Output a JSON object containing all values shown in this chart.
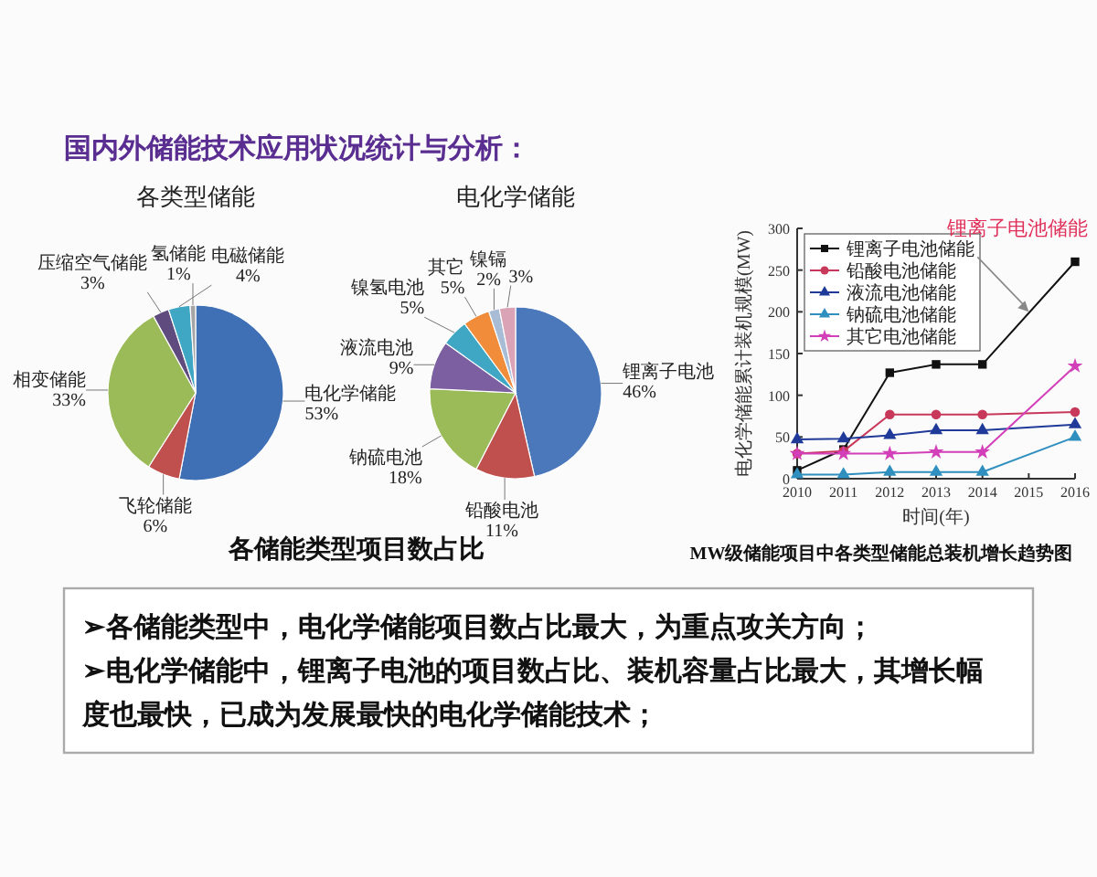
{
  "chart_data": [
    {
      "type": "other",
      "title": "国内外储能技术应用状况统计与分析："
    },
    {
      "type": "pie",
      "title": "各类型储能",
      "categories": [
        "电化学储能",
        "飞轮储能",
        "相变储能",
        "压缩空气储能",
        "电磁储能",
        "氢储能"
      ],
      "values": [
        53,
        6,
        33,
        3,
        4,
        1
      ],
      "value_labels": [
        "53%",
        "6%",
        "33%",
        "3%",
        "4%",
        "1%"
      ],
      "colors": [
        "#3f6fb5",
        "#c0504d",
        "#9bbb59",
        "#5f4b7e",
        "#3fa6c4",
        "#a5a5a5"
      ],
      "annotations": [
        "各储能类型项目数占比"
      ]
    },
    {
      "type": "pie",
      "title": "电化学储能",
      "categories": [
        "锂离子电池",
        "铅酸电池",
        "钠硫电池",
        "液流电池",
        "镍氢电池",
        "其它",
        "镍镉",
        null
      ],
      "values": [
        46,
        11,
        18,
        9,
        5,
        5,
        2,
        3
      ],
      "value_labels": [
        "46%",
        "11%",
        "18%",
        "9%",
        "5%",
        "5%",
        "2%",
        "3%"
      ],
      "colors": [
        "#4a78bb",
        "#c0504d",
        "#9bbb59",
        "#7b5fa0",
        "#3fa6c4",
        "#f08c3a",
        "#a9bcd6",
        "#dba3b6"
      ]
    },
    {
      "type": "line",
      "xlabel": "时间(年)",
      "ylabel": "电化学储能累计装机规模(MW)",
      "x": [
        2010,
        2011,
        2012,
        2013,
        2014,
        2016
      ],
      "xlim": [
        2010,
        2016
      ],
      "xticks": [
        2010,
        2011,
        2012,
        2013,
        2014,
        2015,
        2016
      ],
      "ylim": [
        0,
        300
      ],
      "yticks": [
        0,
        50,
        100,
        150,
        200,
        250,
        300
      ],
      "legend": "top left",
      "line_style": "solid",
      "annotations": [
        {
          "text": "锂离子电池储能",
          "x": 2015,
          "y": 200
        },
        "MW级储能项目中各类型储能总装机增长趋势图"
      ],
      "series": [
        {
          "name": "锂离子电池储能",
          "color": "#111111",
          "marker": "square",
          "values": [
            10,
            35,
            127,
            137,
            137,
            260
          ]
        },
        {
          "name": "铅酸电池储能",
          "color": "#c8385a",
          "marker": "circle",
          "values": [
            30,
            33,
            77,
            77,
            77,
            80
          ]
        },
        {
          "name": "液流电池储能",
          "color": "#1f3a99",
          "marker": "triangle",
          "values": [
            47,
            48,
            52,
            58,
            58,
            65
          ]
        },
        {
          "name": "钠硫电池储能",
          "color": "#2f8fbf",
          "marker": "triangle",
          "values": [
            5,
            5,
            8,
            8,
            8,
            50
          ]
        },
        {
          "name": "其它电池储能",
          "color": "#d23fb8",
          "marker": "star",
          "values": [
            30,
            30,
            30,
            32,
            32,
            135
          ]
        }
      ]
    },
    {
      "type": "other",
      "annotations": [
        "➢各储能类型中，电化学储能项目数占比最大，为重点攻关方向；",
        "➢电化学储能中，锂离子电池的项目数占比、装机容量占比最大，其增长幅度也最快，已成为发展最快的电化学储能技术；"
      ]
    }
  ]
}
